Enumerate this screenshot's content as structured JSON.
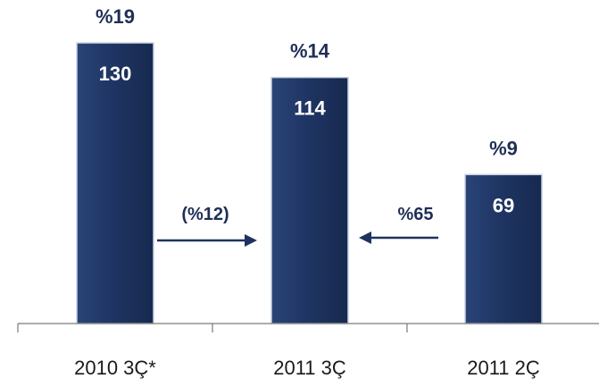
{
  "chart_data": {
    "type": "bar",
    "categories": [
      "2010 3Ç*",
      "2011 3Ç",
      "2011 2Ç"
    ],
    "values": [
      130,
      114,
      69
    ],
    "value_labels": [
      "130",
      "114",
      "69"
    ],
    "top_labels": [
      "%19",
      "%14",
      "%9"
    ],
    "ylim": [
      0,
      140
    ],
    "grid": false,
    "legend": "none",
    "annotations": [
      {
        "text": "(%12)",
        "from": 0,
        "to": 1,
        "direction": "right"
      },
      {
        "text": "%65",
        "from": 2,
        "to": 1,
        "direction": "left"
      }
    ],
    "colors": {
      "bar": "#1f3563",
      "bar_light": "#2e4a82",
      "text_dark": "#1f2f55",
      "arrow": "#1f3260"
    }
  }
}
